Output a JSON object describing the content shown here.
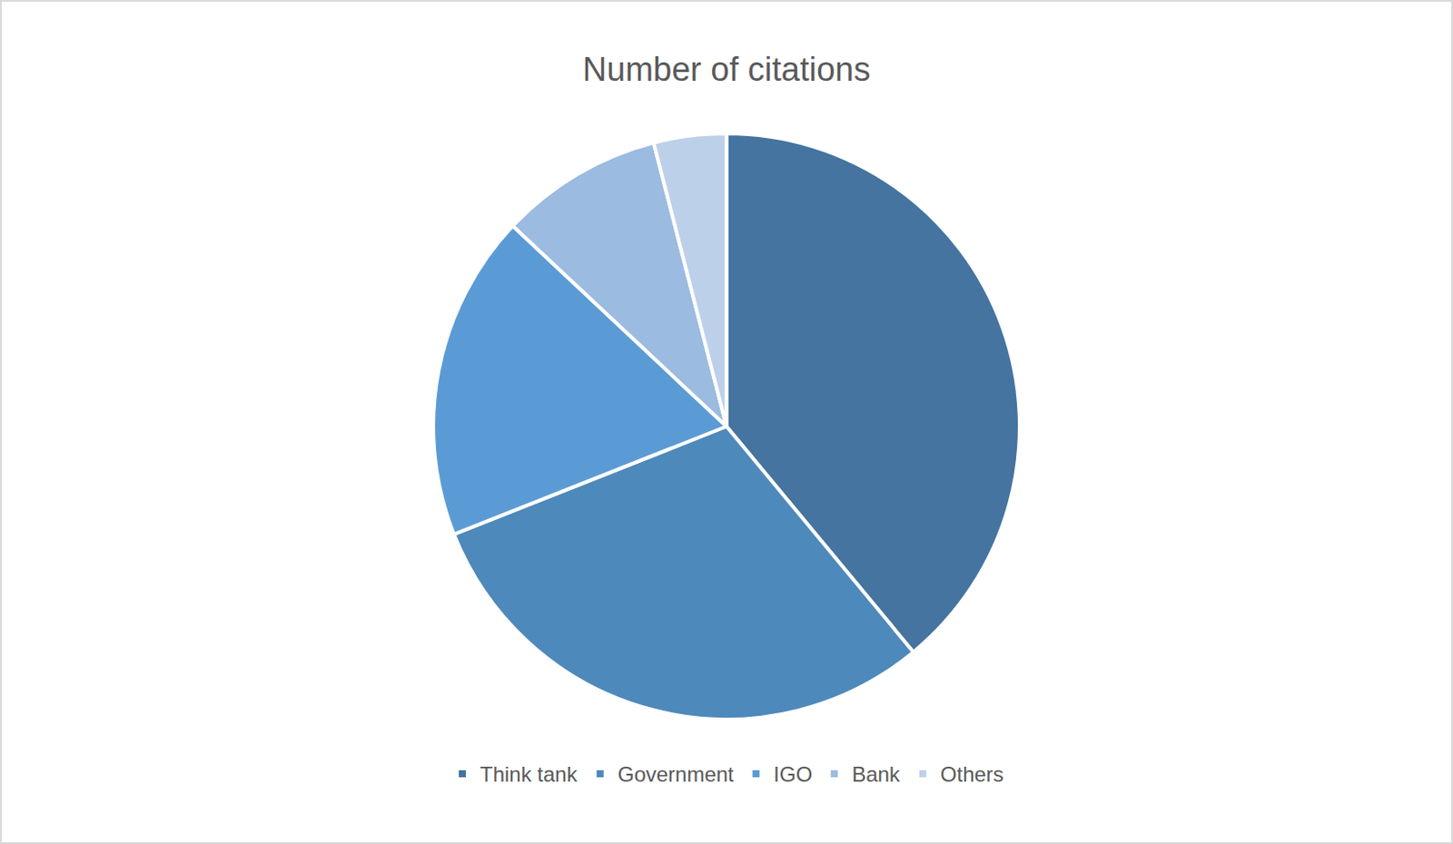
{
  "chart_data": {
    "type": "pie",
    "title": "Number of citations",
    "categories": [
      "Think tank",
      "Government",
      "IGO",
      "Bank",
      "Others"
    ],
    "values": [
      39,
      30,
      18,
      9,
      4
    ],
    "colors": [
      "#44749f",
      "#4e89bb",
      "#5b9bd5",
      "#9bbbe0",
      "#bdd0ea"
    ],
    "legend": "bottom"
  }
}
